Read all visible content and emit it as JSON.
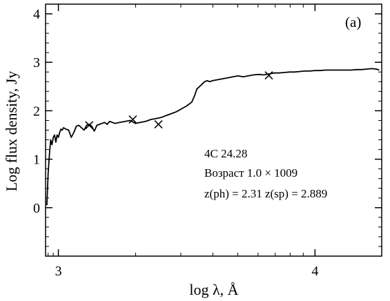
{
  "chart_data": {
    "type": "line",
    "panel_label": "(a)",
    "xlabel": "log λ, Å",
    "ylabel": "Log flux density, Jy",
    "xlim": [
      2.95,
      4.26
    ],
    "ylim": [
      -1.0,
      4.2
    ],
    "x_ticks": [
      3,
      4
    ],
    "y_ticks": [
      0,
      1,
      2,
      3,
      4
    ],
    "grid": false,
    "annotations": {
      "object": "4C 24.28",
      "age_label": "Возраст 1.0 × 1009",
      "redshift": "z(ph) = 2.31 z(sp) = 2.889"
    },
    "series": [
      {
        "x": [
          2.955,
          2.96,
          2.965,
          2.97,
          2.975,
          2.98,
          2.985,
          2.99,
          2.995,
          3.0,
          3.005,
          3.01,
          3.015,
          3.02,
          3.03,
          3.04,
          3.05,
          3.06,
          3.07,
          3.08,
          3.09,
          3.1,
          3.11,
          3.12,
          3.13,
          3.14,
          3.15,
          3.16,
          3.17,
          3.18,
          3.19,
          3.2,
          3.22,
          3.24,
          3.26,
          3.28,
          3.3,
          3.32,
          3.34,
          3.36,
          3.38,
          3.4,
          3.42,
          3.44,
          3.46,
          3.48,
          3.5,
          3.52,
          3.53,
          3.54,
          3.55,
          3.56,
          3.57,
          3.58,
          3.59,
          3.6,
          3.62,
          3.64,
          3.66,
          3.68,
          3.7,
          3.72,
          3.74,
          3.76,
          3.78,
          3.8,
          3.82,
          3.84,
          3.86,
          3.88,
          3.9,
          3.92,
          3.94,
          3.96,
          3.98,
          4.0,
          4.02,
          4.04,
          4.06,
          4.08,
          4.1,
          4.12,
          4.14,
          4.16,
          4.18,
          4.2,
          4.22,
          4.24,
          4.25
        ],
        "y": [
          0.05,
          0.7,
          1.1,
          1.4,
          1.3,
          1.45,
          1.5,
          1.35,
          1.5,
          1.45,
          1.55,
          1.62,
          1.6,
          1.65,
          1.62,
          1.6,
          1.45,
          1.55,
          1.68,
          1.7,
          1.65,
          1.6,
          1.7,
          1.72,
          1.68,
          1.58,
          1.7,
          1.72,
          1.74,
          1.76,
          1.72,
          1.78,
          1.74,
          1.76,
          1.78,
          1.8,
          1.74,
          1.76,
          1.78,
          1.82,
          1.84,
          1.86,
          1.9,
          1.94,
          1.98,
          2.04,
          2.1,
          2.18,
          2.3,
          2.45,
          2.5,
          2.55,
          2.6,
          2.62,
          2.6,
          2.62,
          2.64,
          2.66,
          2.68,
          2.7,
          2.72,
          2.7,
          2.72,
          2.74,
          2.75,
          2.74,
          2.76,
          2.78,
          2.78,
          2.79,
          2.8,
          2.8,
          2.81,
          2.82,
          2.82,
          2.83,
          2.83,
          2.84,
          2.84,
          2.84,
          2.84,
          2.84,
          2.84,
          2.85,
          2.85,
          2.86,
          2.87,
          2.86,
          2.84
        ]
      }
    ],
    "markers": {
      "symbol": "x",
      "x": [
        3.12,
        3.29,
        3.39,
        3.82
      ],
      "y": [
        1.7,
        1.82,
        1.72,
        2.73
      ]
    }
  }
}
